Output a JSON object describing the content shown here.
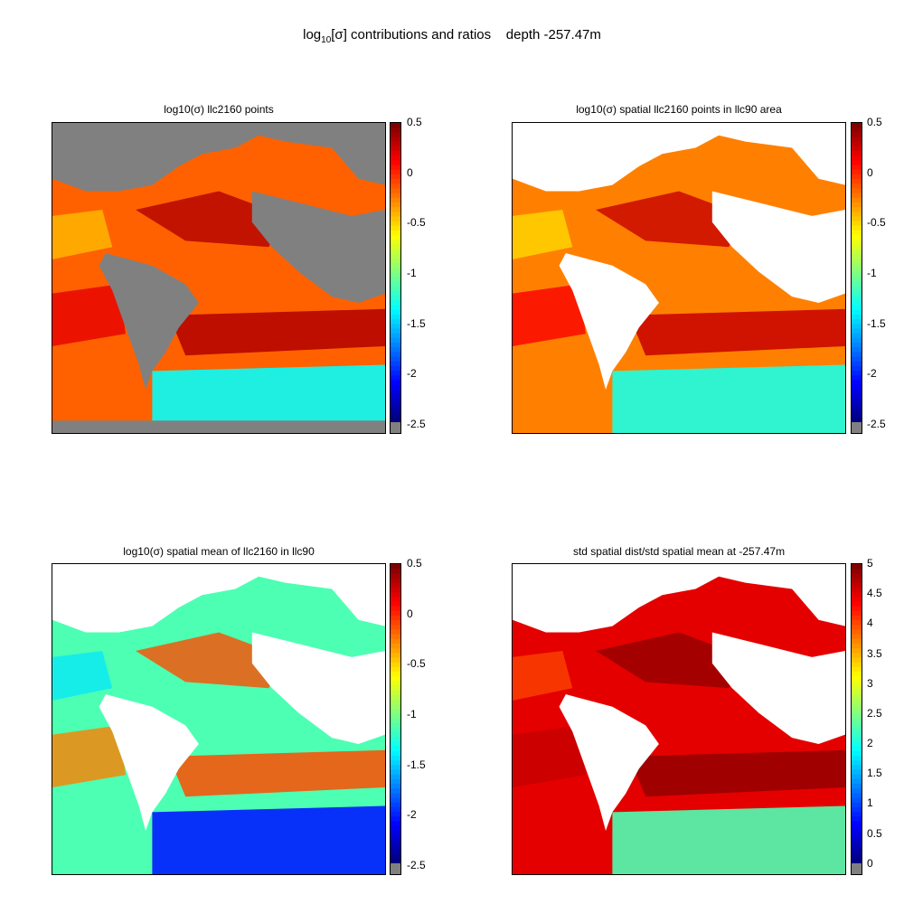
{
  "figure": {
    "suptitle_prefix": "log",
    "suptitle_sub": "10",
    "suptitle_rest": "[σ] contributions and ratios",
    "suptitle_depth": "depth -257.47m"
  },
  "chart_data": [
    {
      "type": "heatmap",
      "title": "log10(σ) llc2160 points",
      "colormap": "jet",
      "land_color": "#808080",
      "land_style": "gray",
      "colorbar": {
        "ticks": [
          "0.5",
          "0",
          "-0.5",
          "-1",
          "-1.5",
          "-2",
          "-2.5"
        ],
        "range": [
          -2.6,
          0.5
        ]
      }
    },
    {
      "type": "heatmap",
      "title": "log10(σ) spatial llc2160 points in llc90 area",
      "colormap": "jet",
      "land_color": "#ffffff",
      "land_style": "white",
      "colorbar": {
        "ticks": [
          "0.5",
          "0",
          "-0.5",
          "-1",
          "-1.5",
          "-2",
          "-2.5"
        ],
        "range": [
          -2.6,
          0.5
        ]
      }
    },
    {
      "type": "heatmap",
      "title": "log10(σ) spatial mean of llc2160 in llc90",
      "colormap": "jet",
      "land_color": "#ffffff",
      "land_style": "white",
      "colorbar": {
        "ticks": [
          "0.5",
          "0",
          "-0.5",
          "-1",
          "-1.5",
          "-2",
          "-2.5"
        ],
        "range": [
          -2.6,
          0.5
        ]
      }
    },
    {
      "type": "heatmap",
      "title": "std spatial dist/std spatial mean at -257.47m",
      "colormap": "jet",
      "land_color": "#ffffff",
      "land_style": "white",
      "colorbar": {
        "ticks": [
          "5",
          "4.5",
          "4",
          "3.5",
          "3",
          "2.5",
          "2",
          "1.5",
          "1",
          "0.5",
          "0"
        ],
        "range": [
          -0.2,
          5
        ]
      }
    }
  ]
}
